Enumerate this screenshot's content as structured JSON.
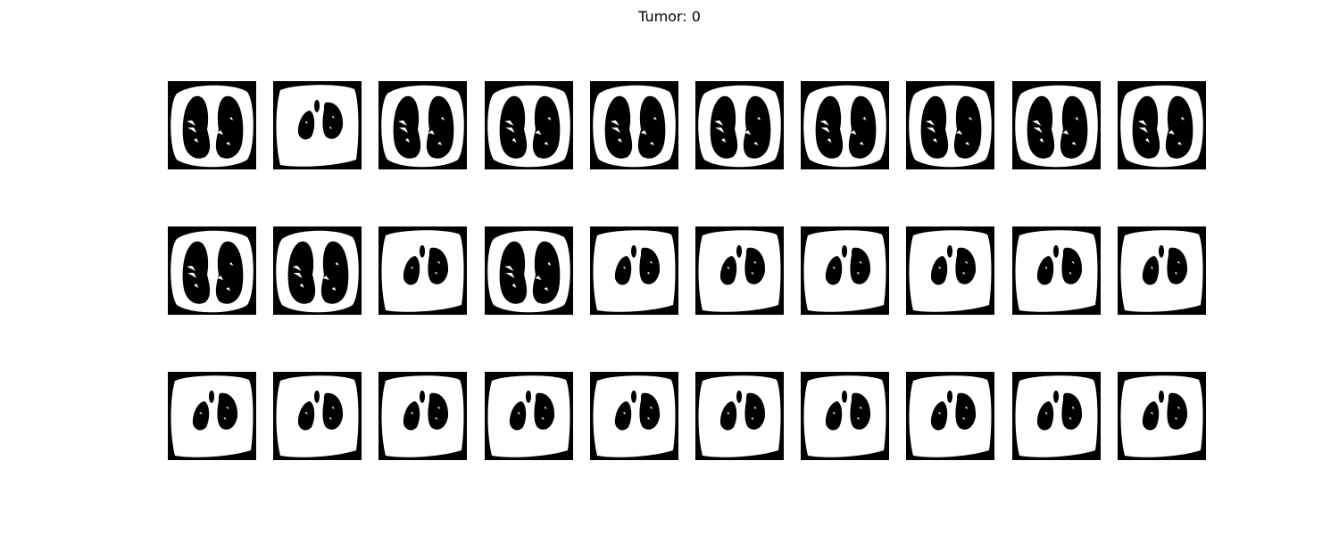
{
  "figure": {
    "title": "Tumor: 0"
  },
  "colors": {
    "background": "#ffffff",
    "mask_background": "#000000",
    "body": "#ffffff",
    "lung": "#000000"
  },
  "grid": {
    "rows": 3,
    "columns": 10,
    "axes": "off"
  },
  "panels": [
    {
      "row": 1,
      "col": 1,
      "slice": "upper-lung",
      "airway_visible": false
    },
    {
      "row": 1,
      "col": 2,
      "slice": "lower-lung",
      "airway_visible": true
    },
    {
      "row": 1,
      "col": 3,
      "slice": "upper-lung",
      "airway_visible": false
    },
    {
      "row": 1,
      "col": 4,
      "slice": "upper-lung",
      "airway_visible": false
    },
    {
      "row": 1,
      "col": 5,
      "slice": "upper-lung",
      "airway_visible": false
    },
    {
      "row": 1,
      "col": 6,
      "slice": "upper-lung",
      "airway_visible": false
    },
    {
      "row": 1,
      "col": 7,
      "slice": "upper-lung",
      "airway_visible": false
    },
    {
      "row": 1,
      "col": 8,
      "slice": "upper-lung",
      "airway_visible": false
    },
    {
      "row": 1,
      "col": 9,
      "slice": "upper-lung",
      "airway_visible": false
    },
    {
      "row": 1,
      "col": 10,
      "slice": "upper-lung",
      "airway_visible": false
    },
    {
      "row": 2,
      "col": 1,
      "slice": "upper-lung",
      "airway_visible": false
    },
    {
      "row": 2,
      "col": 2,
      "slice": "upper-lung",
      "airway_visible": false
    },
    {
      "row": 2,
      "col": 3,
      "slice": "lower-lung",
      "airway_visible": true
    },
    {
      "row": 2,
      "col": 4,
      "slice": "upper-lung",
      "airway_visible": false
    },
    {
      "row": 2,
      "col": 5,
      "slice": "lower-lung",
      "airway_visible": true
    },
    {
      "row": 2,
      "col": 6,
      "slice": "lower-lung",
      "airway_visible": true
    },
    {
      "row": 2,
      "col": 7,
      "slice": "lower-lung",
      "airway_visible": true
    },
    {
      "row": 2,
      "col": 8,
      "slice": "lower-lung",
      "airway_visible": true
    },
    {
      "row": 2,
      "col": 9,
      "slice": "lower-lung",
      "airway_visible": true
    },
    {
      "row": 2,
      "col": 10,
      "slice": "lower-lung",
      "airway_visible": true
    },
    {
      "row": 3,
      "col": 1,
      "slice": "lower-lung",
      "airway_visible": true
    },
    {
      "row": 3,
      "col": 2,
      "slice": "lower-lung",
      "airway_visible": true
    },
    {
      "row": 3,
      "col": 3,
      "slice": "lower-lung",
      "airway_visible": true
    },
    {
      "row": 3,
      "col": 4,
      "slice": "lower-lung",
      "airway_visible": true
    },
    {
      "row": 3,
      "col": 5,
      "slice": "lower-lung",
      "airway_visible": true
    },
    {
      "row": 3,
      "col": 6,
      "slice": "lower-lung",
      "airway_visible": true
    },
    {
      "row": 3,
      "col": 7,
      "slice": "lower-lung",
      "airway_visible": true
    },
    {
      "row": 3,
      "col": 8,
      "slice": "lower-lung",
      "airway_visible": true
    },
    {
      "row": 3,
      "col": 9,
      "slice": "lower-lung",
      "airway_visible": true
    },
    {
      "row": 3,
      "col": 10,
      "slice": "lower-lung",
      "airway_visible": true
    }
  ]
}
